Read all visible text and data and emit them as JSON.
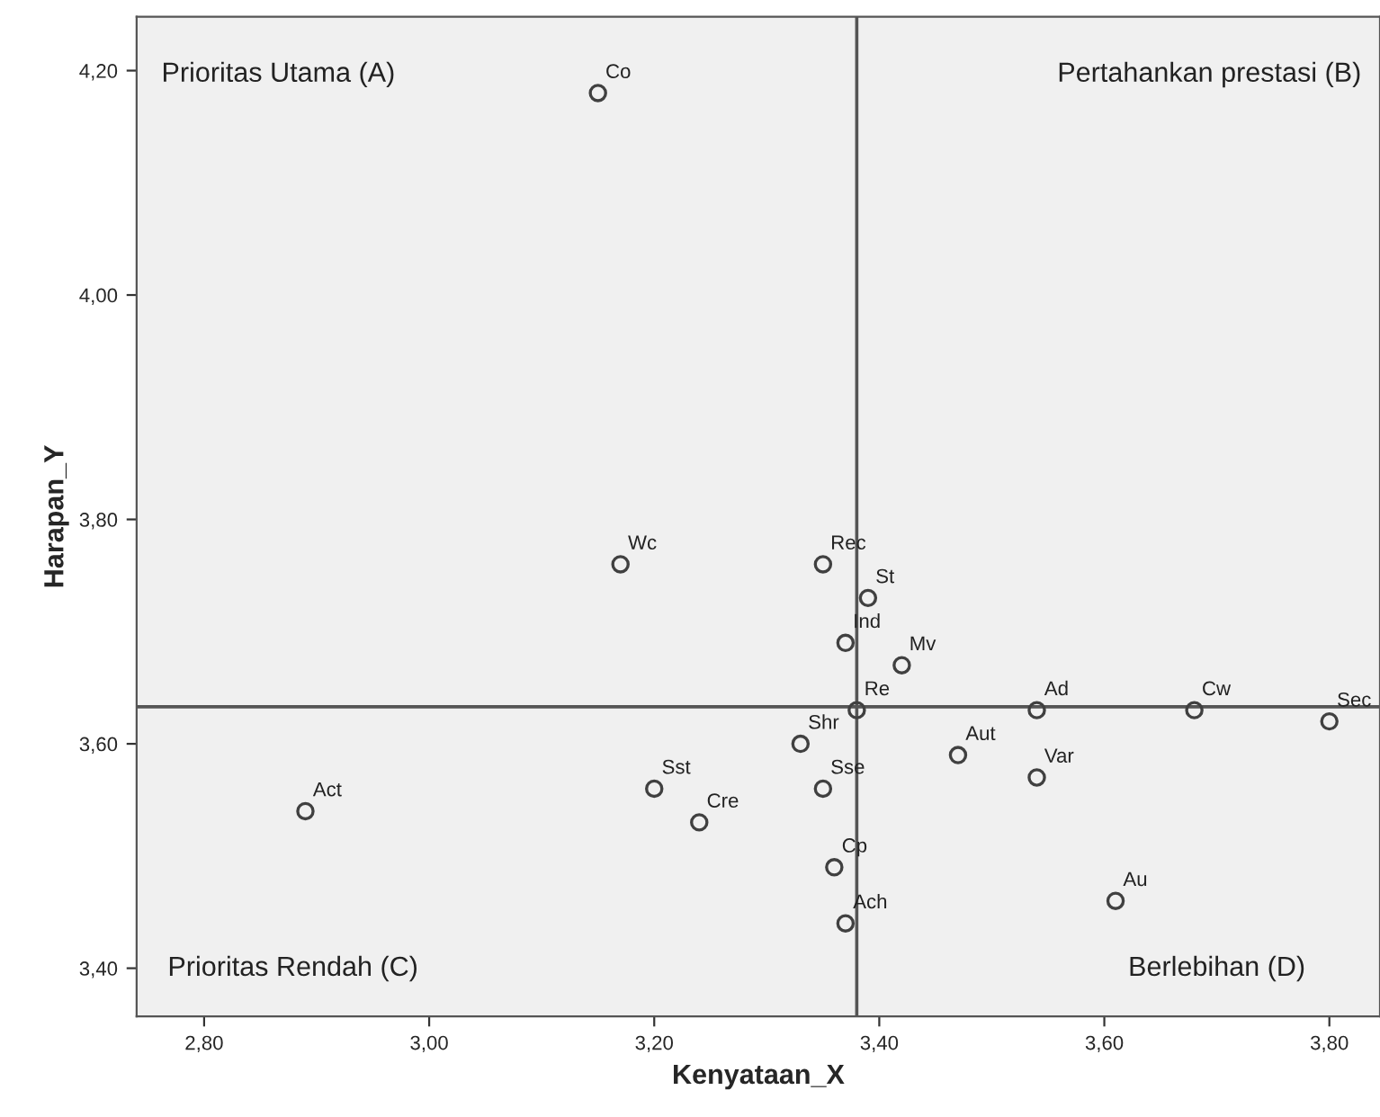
{
  "chart_data": {
    "type": "scatter",
    "xlabel": "Kenyataan_X",
    "ylabel": "Harapan_Y",
    "x": [
      3.15,
      3.17,
      3.35,
      3.39,
      3.37,
      3.42,
      3.38,
      3.54,
      3.68,
      3.8,
      3.33,
      3.47,
      3.54,
      3.2,
      3.35,
      2.89,
      3.24,
      3.36,
      3.37,
      3.61
    ],
    "series": [
      {
        "color": "#404040",
        "values": [
          4.18,
          3.76,
          3.76,
          3.73,
          3.69,
          3.67,
          3.63,
          3.63,
          3.63,
          3.62,
          3.6,
          3.59,
          3.57,
          3.56,
          3.56,
          3.54,
          3.53,
          3.49,
          3.44,
          3.46
        ]
      }
    ],
    "marker": "circle",
    "xlim": [
      2.74,
      3.845
    ],
    "ylim": [
      3.357,
      4.248
    ],
    "xticks": [
      {
        "value": 2.8,
        "label": "2,80"
      },
      {
        "value": 3.0,
        "label": "3,00"
      },
      {
        "value": 3.2,
        "label": "3,20"
      },
      {
        "value": 3.4,
        "label": "3,40"
      },
      {
        "value": 3.6,
        "label": "3,60"
      },
      {
        "value": 3.8,
        "label": "3,80"
      }
    ],
    "yticks": [
      {
        "value": 3.4,
        "label": "3,40"
      },
      {
        "value": 3.6,
        "label": "3,60"
      },
      {
        "value": 3.8,
        "label": "3,80"
      },
      {
        "value": 4.0,
        "label": "4,00"
      },
      {
        "value": 4.2,
        "label": "4,20"
      }
    ],
    "ref_lines": [
      {
        "axis": "x",
        "value": 3.38,
        "color": "#555555"
      },
      {
        "axis": "y",
        "value": 3.633,
        "color": "#555555"
      }
    ],
    "grid": false,
    "legend": false,
    "annotations": [
      {
        "text": "Co",
        "x": 3.15,
        "y": 4.18
      },
      {
        "text": "Wc",
        "x": 3.17,
        "y": 3.76
      },
      {
        "text": "Rec",
        "x": 3.35,
        "y": 3.76
      },
      {
        "text": "St",
        "x": 3.39,
        "y": 3.73
      },
      {
        "text": "Ind",
        "x": 3.37,
        "y": 3.69
      },
      {
        "text": "Mv",
        "x": 3.42,
        "y": 3.67
      },
      {
        "text": "Re",
        "x": 3.38,
        "y": 3.63
      },
      {
        "text": "Ad",
        "x": 3.54,
        "y": 3.63
      },
      {
        "text": "Cw",
        "x": 3.68,
        "y": 3.63
      },
      {
        "text": "Sec",
        "x": 3.8,
        "y": 3.62
      },
      {
        "text": "Shr",
        "x": 3.33,
        "y": 3.6
      },
      {
        "text": "Aut",
        "x": 3.47,
        "y": 3.59
      },
      {
        "text": "Var",
        "x": 3.54,
        "y": 3.57
      },
      {
        "text": "Sst",
        "x": 3.2,
        "y": 3.56
      },
      {
        "text": "Sse",
        "x": 3.35,
        "y": 3.56
      },
      {
        "text": "Act",
        "x": 2.89,
        "y": 3.54
      },
      {
        "text": "Cre",
        "x": 3.24,
        "y": 3.53
      },
      {
        "text": "Cp",
        "x": 3.36,
        "y": 3.49
      },
      {
        "text": "Ach",
        "x": 3.37,
        "y": 3.44
      },
      {
        "text": "Au",
        "x": 3.61,
        "y": 3.46
      },
      "Prioritas Utama (A)",
      "Pertahankan prestasi (B)",
      "Prioritas Rendah (C)",
      "Berlebihan (D)"
    ]
  }
}
